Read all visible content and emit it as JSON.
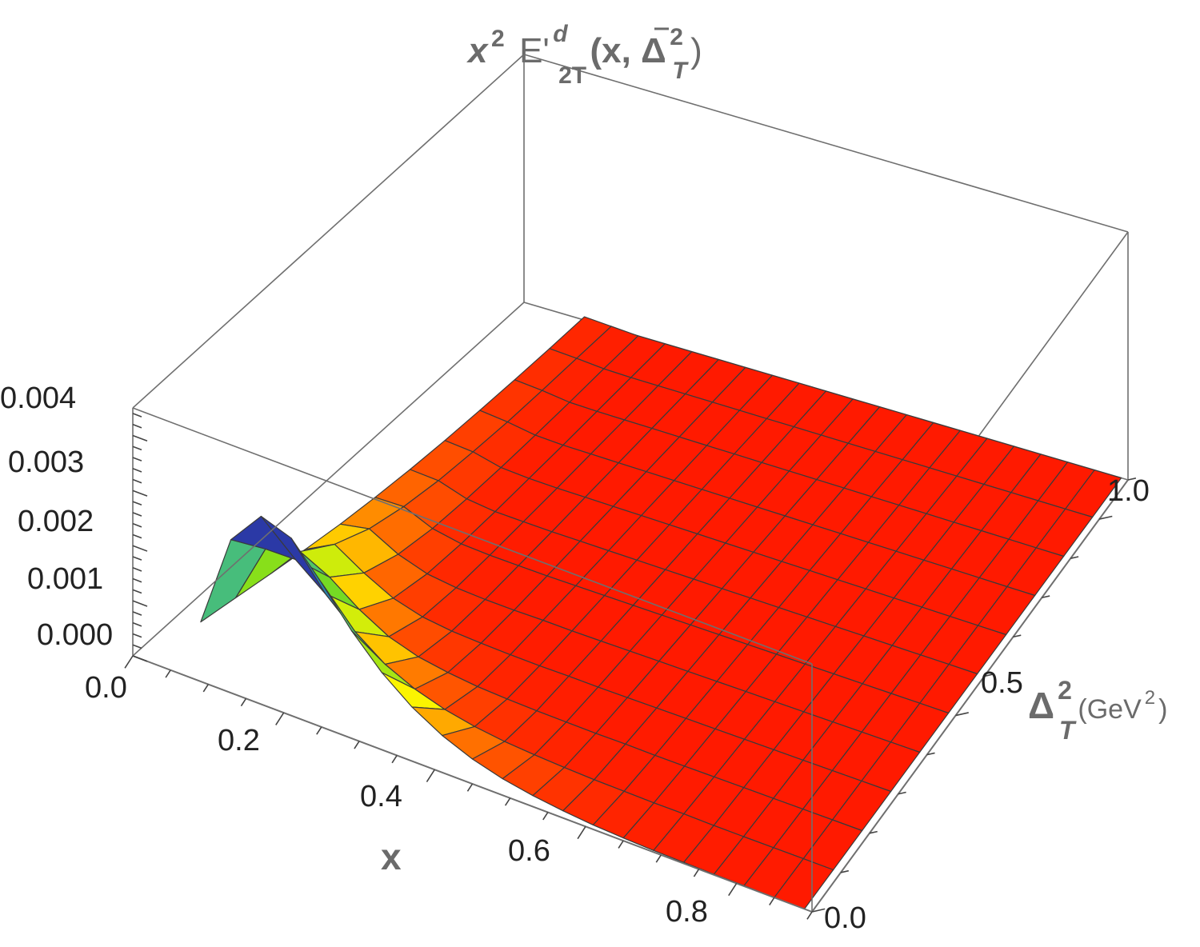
{
  "chart_data": {
    "type": "surface3d",
    "title": {
      "prefix": "x",
      "prefix_sup": "2",
      "func": "E'",
      "func_sup": "d",
      "func_sub": "2T",
      "args_open": "(x, Δ",
      "args_sup": "2",
      "args_sub": "T",
      "args_close": ")"
    },
    "x_axis": {
      "label": "x",
      "ticks": [
        {
          "value": 0.0,
          "label": "0.0"
        },
        {
          "value": 0.2,
          "label": "0.2"
        },
        {
          "value": 0.4,
          "label": "0.4"
        },
        {
          "value": 0.6,
          "label": "0.6"
        },
        {
          "value": 0.8,
          "label": "0.8"
        }
      ],
      "range": [
        0.0,
        0.9
      ]
    },
    "y_axis": {
      "label_main": "Δ",
      "label_sup": "2",
      "label_sub": "T",
      "unit_open": "(GeV",
      "unit_sup": "2",
      "unit_close": ")",
      "ticks": [
        {
          "value": 0.0,
          "label": "0.0"
        },
        {
          "value": 0.5,
          "label": "0.5"
        },
        {
          "value": 1.0,
          "label": "1.0"
        }
      ],
      "range": [
        0.0,
        1.1
      ]
    },
    "z_axis": {
      "ticks": [
        {
          "value": 0.0,
          "label": "0.000"
        },
        {
          "value": 0.001,
          "label": "0.001"
        },
        {
          "value": 0.002,
          "label": "0.002"
        },
        {
          "value": 0.003,
          "label": "0.003"
        },
        {
          "value": 0.004,
          "label": "0.004"
        }
      ],
      "range": [
        0.0,
        0.0045
      ]
    },
    "x_grid": [
      0.09,
      0.13,
      0.17,
      0.21,
      0.25,
      0.29,
      0.33,
      0.37,
      0.41,
      0.45,
      0.49,
      0.53,
      0.57,
      0.61,
      0.65,
      0.69,
      0.73,
      0.77,
      0.81,
      0.85,
      0.89
    ],
    "y_grid": [
      0.0,
      0.1,
      0.2,
      0.3,
      0.4,
      0.5,
      0.6,
      0.7,
      0.8,
      0.9,
      1.0,
      1.1
    ],
    "z_values": [
      [
        0.00108,
        0.00092,
        0.00076,
        0.00061,
        0.00047,
        0.00036,
        0.00027,
        0.0002,
        0.00015,
        0.00011,
        8e-05,
        6e-05
      ],
      [
        0.00278,
        0.00201,
        0.00136,
        0.00089,
        0.00057,
        0.00037,
        0.00024,
        0.00016,
        0.0001,
        7e-05,
        5e-05,
        3e-05
      ],
      [
        0.00341,
        0.00202,
        0.00109,
        0.00056,
        0.00029,
        0.00015,
        8e-05,
        4e-05,
        2e-05,
        1e-05,
        1e-05,
        0.0
      ],
      [
        0.00322,
        0.0016,
        0.0007,
        0.00029,
        0.00012,
        5e-05,
        2e-05,
        1e-05,
        0.0,
        0.0,
        0.0,
        0.0
      ],
      [
        0.00262,
        0.00111,
        0.0004,
        0.00014,
        5e-05,
        2e-05,
        1e-05,
        0.0,
        0.0,
        0.0,
        0.0,
        0.0
      ],
      [
        0.00195,
        0.00072,
        0.00023,
        7e-05,
        2e-05,
        1e-05,
        0.0,
        0.0,
        0.0,
        0.0,
        0.0,
        0.0
      ],
      [
        0.0014,
        0.00047,
        0.00014,
        4e-05,
        1e-05,
        0.0,
        0.0,
        0.0,
        0.0,
        0.0,
        0.0,
        0.0
      ],
      [
        0.00098,
        0.0003,
        8e-05,
        2e-05,
        1e-05,
        0.0,
        0.0,
        0.0,
        0.0,
        0.0,
        0.0,
        0.0
      ],
      [
        0.00067,
        0.00019,
        5e-05,
        1e-05,
        0.0,
        0.0,
        0.0,
        0.0,
        0.0,
        0.0,
        0.0,
        0.0
      ],
      [
        0.00045,
        0.00012,
        3e-05,
        1e-05,
        0.0,
        0.0,
        0.0,
        0.0,
        0.0,
        0.0,
        0.0,
        0.0
      ],
      [
        0.0003,
        8e-05,
        2e-05,
        0.0,
        0.0,
        0.0,
        0.0,
        0.0,
        0.0,
        0.0,
        0.0,
        0.0
      ],
      [
        0.0002,
        5e-05,
        1e-05,
        0.0,
        0.0,
        0.0,
        0.0,
        0.0,
        0.0,
        0.0,
        0.0,
        0.0
      ],
      [
        0.00013,
        3e-05,
        1e-05,
        0.0,
        0.0,
        0.0,
        0.0,
        0.0,
        0.0,
        0.0,
        0.0,
        0.0
      ],
      [
        8e-05,
        2e-05,
        0.0,
        0.0,
        0.0,
        0.0,
        0.0,
        0.0,
        0.0,
        0.0,
        0.0,
        0.0
      ],
      [
        5e-05,
        1e-05,
        0.0,
        0.0,
        0.0,
        0.0,
        0.0,
        0.0,
        0.0,
        0.0,
        0.0,
        0.0
      ],
      [
        3e-05,
        1e-05,
        0.0,
        0.0,
        0.0,
        0.0,
        0.0,
        0.0,
        0.0,
        0.0,
        0.0,
        0.0
      ],
      [
        2e-05,
        0.0,
        0.0,
        0.0,
        0.0,
        0.0,
        0.0,
        0.0,
        0.0,
        0.0,
        0.0,
        0.0
      ],
      [
        1e-05,
        0.0,
        0.0,
        0.0,
        0.0,
        0.0,
        0.0,
        0.0,
        0.0,
        0.0,
        0.0,
        0.0
      ],
      [
        1e-05,
        0.0,
        0.0,
        0.0,
        0.0,
        0.0,
        0.0,
        0.0,
        0.0,
        0.0,
        0.0,
        0.0
      ],
      [
        0.0,
        0.0,
        0.0,
        0.0,
        0.0,
        0.0,
        0.0,
        0.0,
        0.0,
        0.0,
        0.0,
        0.0
      ],
      [
        0.0,
        0.0,
        0.0,
        0.0,
        0.0,
        0.0,
        0.0,
        0.0,
        0.0,
        0.0,
        0.0,
        0.0
      ]
    ],
    "colormap": "rainbow: red at 0, yellow, green, blue, purple/dark at max",
    "colors": {
      "box_edge": "#6f6f6f",
      "mesh_line": "#3a3a3a",
      "label_gray": "#6b6b6b",
      "tick_text": "#222222"
    },
    "grid": false,
    "legend": "none"
  }
}
